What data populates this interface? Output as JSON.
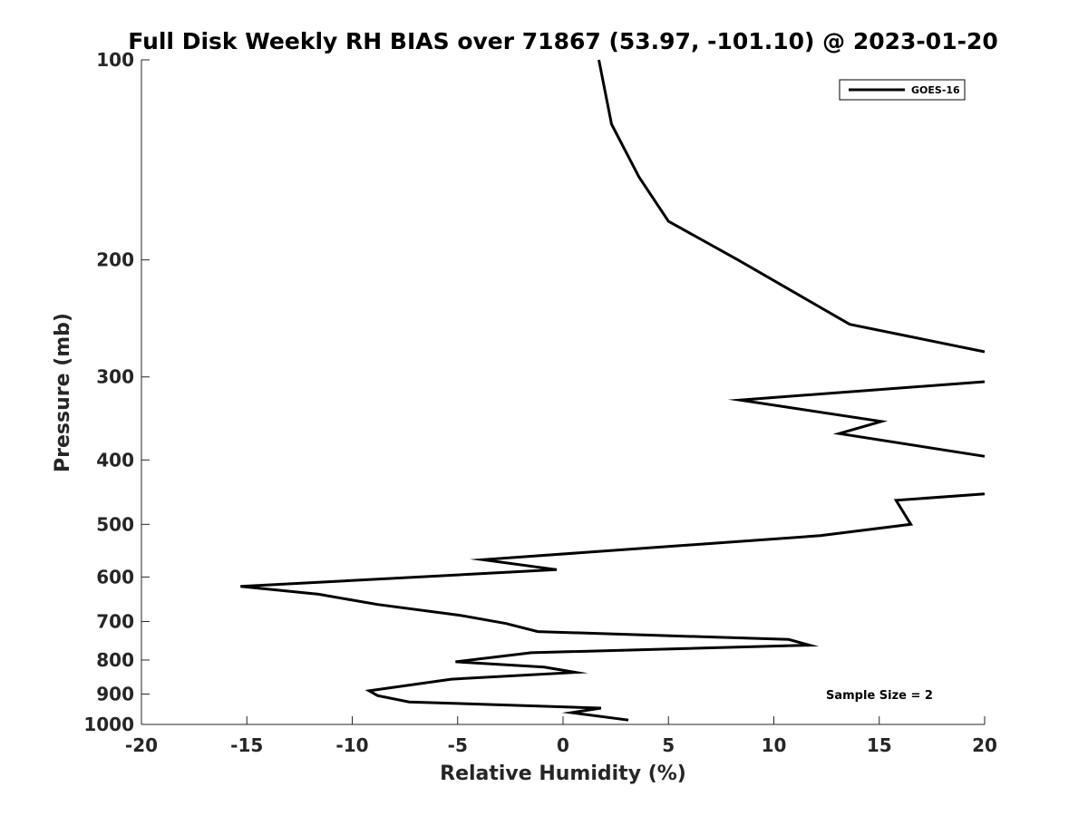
{
  "chart_data": {
    "type": "line",
    "title": "Full Disk Weekly RH BIAS over 71867 (53.97, -101.10) @ 2023-01-20",
    "xlabel": "Relative Humidity (%)",
    "ylabel": "Pressure (mb)",
    "xlim": [
      -20,
      20
    ],
    "ylim": [
      100,
      1000
    ],
    "y_scale": "log",
    "y_reversed": true,
    "x_ticks": [
      -20,
      -15,
      -10,
      -5,
      0,
      5,
      10,
      15,
      20
    ],
    "x_tick_labels": [
      "-20",
      "-15",
      "-10",
      "-5",
      "0",
      "5",
      "10",
      "15",
      "20"
    ],
    "y_ticks": [
      100,
      200,
      300,
      400,
      500,
      600,
      700,
      800,
      900,
      1000
    ],
    "y_tick_labels": [
      "100",
      "200",
      "300",
      "400",
      "500",
      "600",
      "700",
      "800",
      "900",
      "1000"
    ],
    "grid": false,
    "legend_position": "top-right",
    "annotation": "Sample Size = 2",
    "series": [
      {
        "name": "GOES-16",
        "color": "#000000",
        "segments": [
          [
            {
              "x": 1.7,
              "y": 100
            },
            {
              "x": 2.3,
              "y": 125
            },
            {
              "x": 3.6,
              "y": 150
            },
            {
              "x": 5.0,
              "y": 175
            },
            {
              "x": 8.3,
              "y": 200
            },
            {
              "x": 13.6,
              "y": 250
            },
            {
              "x": 20.0,
              "y": 275
            }
          ],
          [
            {
              "x": 20.0,
              "y": 305
            },
            {
              "x": 8.4,
              "y": 325
            },
            {
              "x": 15.1,
              "y": 350
            },
            {
              "x": 13.1,
              "y": 365
            },
            {
              "x": 20.0,
              "y": 395
            }
          ],
          [
            {
              "x": 20.0,
              "y": 450
            },
            {
              "x": 15.8,
              "y": 460
            },
            {
              "x": 16.5,
              "y": 500
            },
            {
              "x": 12.2,
              "y": 520
            },
            {
              "x": -3.8,
              "y": 565
            },
            {
              "x": -0.3,
              "y": 585
            },
            {
              "x": -15.3,
              "y": 620
            },
            {
              "x": -11.6,
              "y": 637
            },
            {
              "x": -8.8,
              "y": 660
            },
            {
              "x": -4.9,
              "y": 685
            },
            {
              "x": -2.7,
              "y": 705
            },
            {
              "x": -1.2,
              "y": 725
            },
            {
              "x": 10.7,
              "y": 745
            },
            {
              "x": 11.7,
              "y": 760
            },
            {
              "x": -1.5,
              "y": 780
            },
            {
              "x": -5.1,
              "y": 805
            },
            {
              "x": -0.9,
              "y": 820
            },
            {
              "x": 0.6,
              "y": 835
            },
            {
              "x": -5.3,
              "y": 855
            },
            {
              "x": -9.2,
              "y": 890
            },
            {
              "x": -8.8,
              "y": 905
            },
            {
              "x": -7.3,
              "y": 925
            },
            {
              "x": 1.8,
              "y": 945
            },
            {
              "x": 0.4,
              "y": 960
            },
            {
              "x": 3.1,
              "y": 985
            }
          ]
        ]
      }
    ]
  }
}
